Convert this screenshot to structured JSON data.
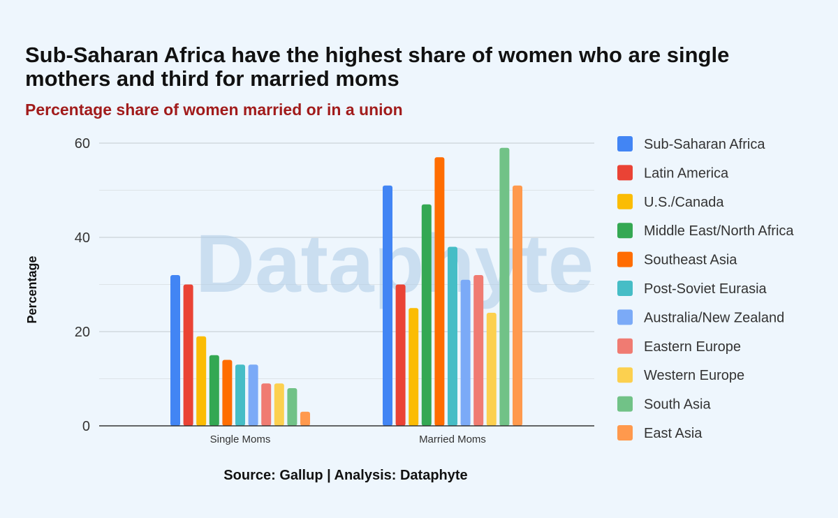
{
  "title": "Sub-Saharan Africa have the highest share of women who are single mothers and third for married moms",
  "subtitle": "Percentage share of women married or in a union",
  "source": "Source: Gallup | Analysis: Dataphyte",
  "watermark": "Dataphyte",
  "chart_data": {
    "type": "bar",
    "categories": [
      "Single Moms",
      "Married Moms"
    ],
    "ylabel": "Percentage",
    "xlabel": "",
    "ylim": [
      0,
      60
    ],
    "yticks": [
      0,
      20,
      40,
      60
    ],
    "grid": true,
    "legend_position": "right",
    "series": [
      {
        "name": "Sub-Saharan Africa",
        "color": "#4285f4",
        "values": [
          32,
          51
        ]
      },
      {
        "name": "Latin America",
        "color": "#ea4335",
        "values": [
          30,
          30
        ]
      },
      {
        "name": "U.S./Canada",
        "color": "#fbbc04",
        "values": [
          19,
          25
        ]
      },
      {
        "name": "Middle East/North Africa",
        "color": "#34a853",
        "values": [
          15,
          47
        ]
      },
      {
        "name": "Southeast Asia",
        "color": "#ff6d01",
        "values": [
          14,
          57
        ]
      },
      {
        "name": "Post-Soviet Eurasia",
        "color": "#46bdc6",
        "values": [
          13,
          38
        ]
      },
      {
        "name": "Australia/New Zealand",
        "color": "#7baaf7",
        "values": [
          13,
          31
        ]
      },
      {
        "name": "Eastern Europe",
        "color": "#f07b72",
        "values": [
          9,
          32
        ]
      },
      {
        "name": "Western Europe",
        "color": "#fcd04f",
        "values": [
          9,
          24
        ]
      },
      {
        "name": "South Asia",
        "color": "#71c287",
        "values": [
          8,
          59
        ]
      },
      {
        "name": "East Asia",
        "color": "#ff994d",
        "values": [
          3,
          51
        ]
      }
    ]
  }
}
